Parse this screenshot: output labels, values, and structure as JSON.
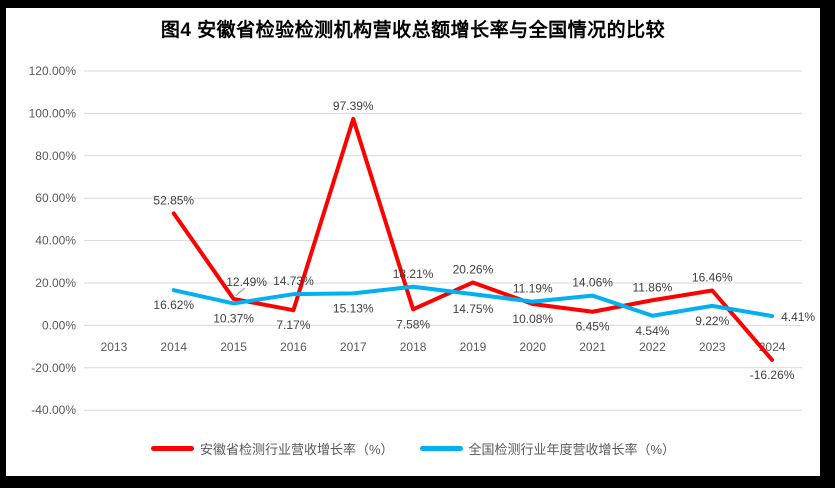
{
  "title": "图4 安徽省检验检测机构营收总额增长率与全国情况的比较",
  "colors": {
    "frame": "#000000",
    "background": "#FFFFFF",
    "gridline": "#D9D9D9",
    "axis_text": "#595959",
    "data_label_text": "#404040",
    "title_text": "#000000",
    "leader_line": "#A6A6A6"
  },
  "chart_data": {
    "type": "line",
    "title": "图4 安徽省检验检测机构营收总额增长率与全国情况的比较",
    "categories": [
      "2013",
      "2014",
      "2015",
      "2016",
      "2017",
      "2018",
      "2019",
      "2020",
      "2021",
      "2022",
      "2023",
      "2024"
    ],
    "y_axis": {
      "min": -40,
      "max": 120,
      "step": 20,
      "tick_labels": [
        "120.00%",
        "100.00%",
        "80.00%",
        "60.00%",
        "40.00%",
        "20.00%",
        "0.00%",
        "-20.00%",
        "-40.00%"
      ]
    },
    "grid": true,
    "legend_position": "bottom",
    "series": [
      {
        "name": "安徽省检测行业营收增长率（%）",
        "color": "#FF0000",
        "values": [
          null,
          52.85,
          12.49,
          7.17,
          97.39,
          7.58,
          20.26,
          10.08,
          6.45,
          11.86,
          16.46,
          -16.26
        ],
        "point_labels": [
          null,
          "52.85%",
          "12.49%",
          "7.17%",
          "97.39%",
          "7.58%",
          "20.26%",
          "10.08%",
          "6.45%",
          "11.86%",
          "16.46%",
          "-16.26%"
        ],
        "label_placement": [
          null,
          "above",
          "above-leader",
          "below",
          "above",
          "below",
          "above",
          "below",
          "below",
          "above",
          "above",
          "below"
        ]
      },
      {
        "name": "全国检测行业年度营收增长率（%）",
        "color": "#00B0F0",
        "values": [
          null,
          16.62,
          10.37,
          14.73,
          15.13,
          18.21,
          14.75,
          11.19,
          14.06,
          4.54,
          9.22,
          4.41
        ],
        "point_labels": [
          null,
          "16.62%",
          "10.37%",
          "14.73%",
          "15.13%",
          "18.21%",
          "14.75%",
          "11.19%",
          "14.06%",
          "4.54%",
          "9.22%",
          "4.41%"
        ],
        "label_placement": [
          null,
          "below",
          "below",
          "above",
          "below",
          "above",
          "below",
          "above",
          "above",
          "below",
          "below",
          "right"
        ]
      }
    ]
  }
}
